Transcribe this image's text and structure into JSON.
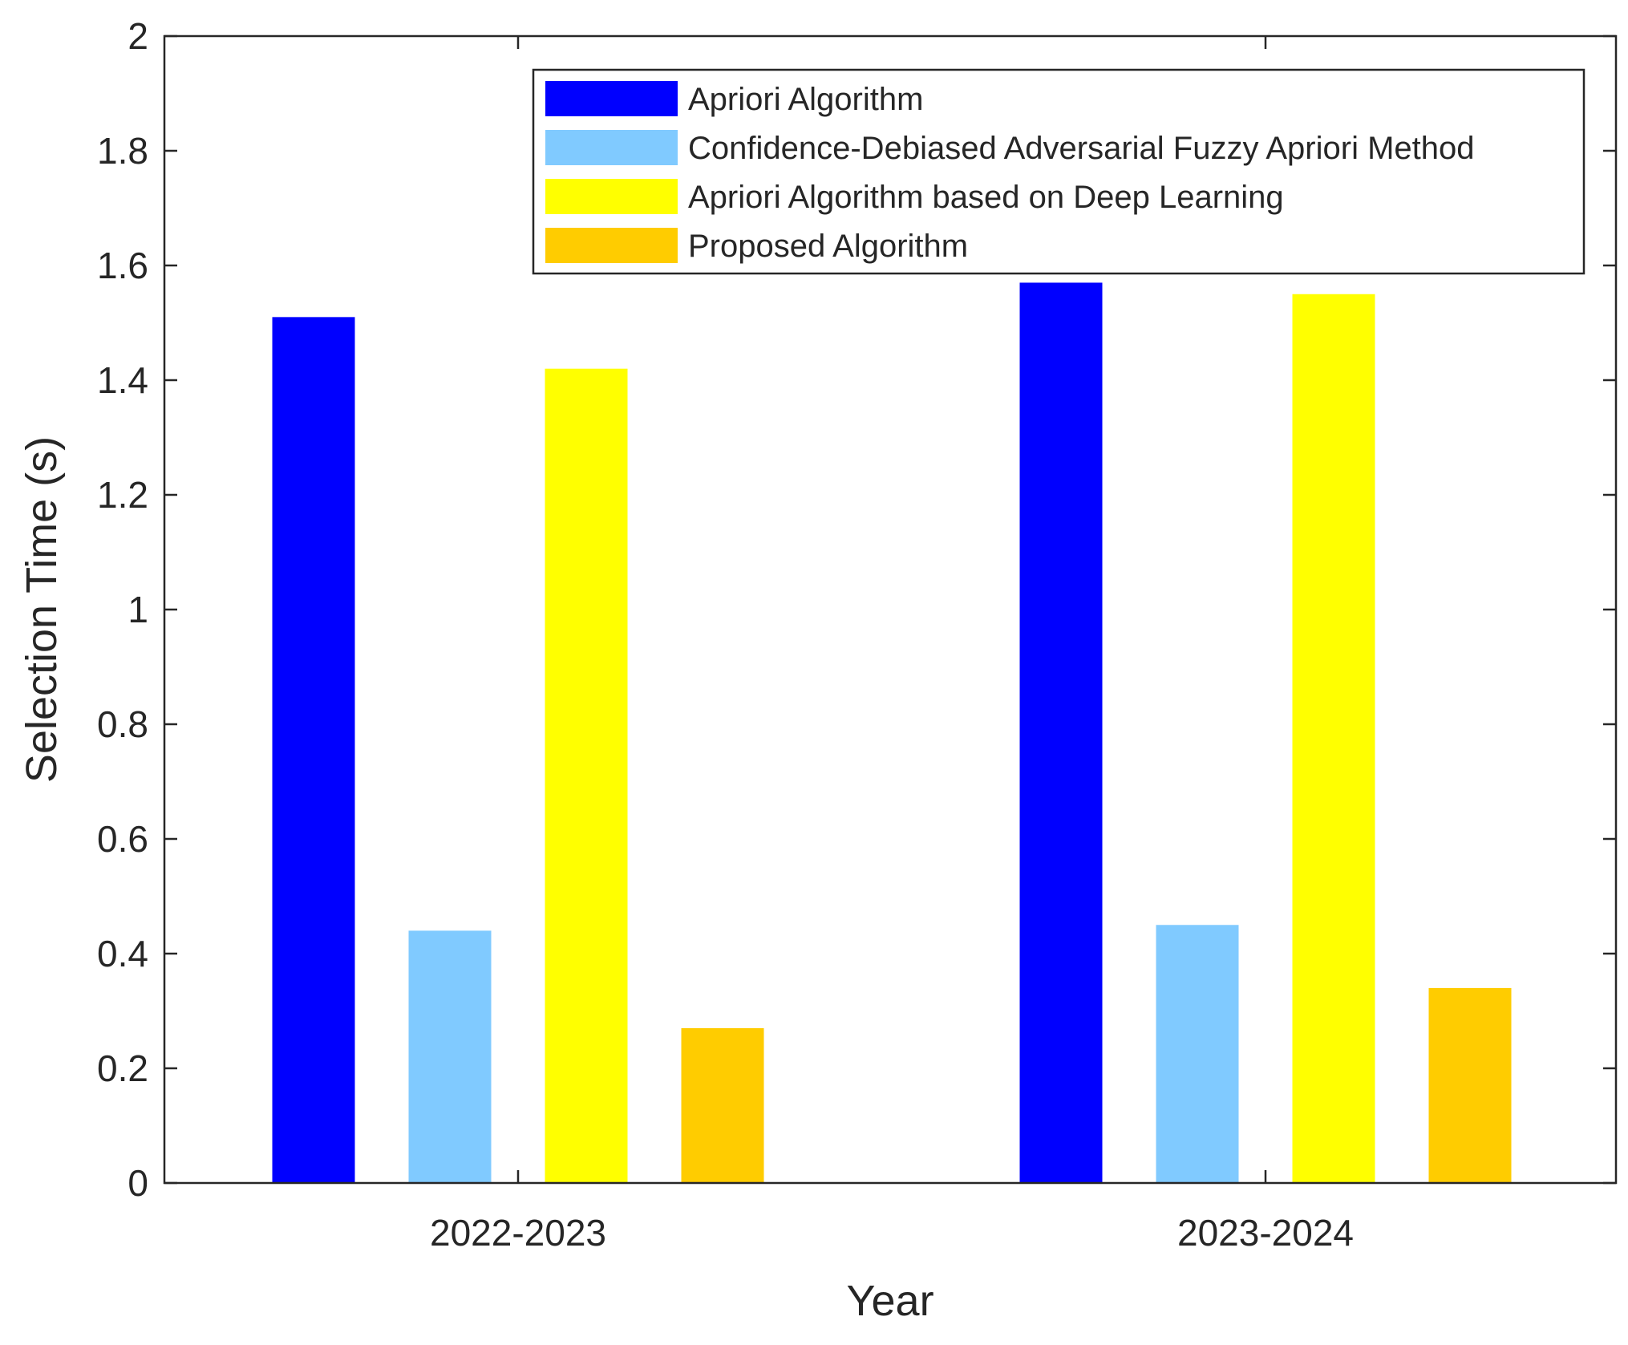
{
  "chart_data": {
    "type": "bar",
    "title": "",
    "xlabel": "Year",
    "ylabel": "Selection Time (s)",
    "categories": [
      "2022-2023",
      "2023-2024"
    ],
    "ylim": [
      0,
      2
    ],
    "yticks": [
      "0",
      "0.2",
      "0.4",
      "0.6",
      "0.8",
      "1",
      "1.2",
      "1.4",
      "1.6",
      "1.8",
      "2"
    ],
    "grid": false,
    "legend_position": "top-right",
    "series": [
      {
        "name": "Apriori Algorithm",
        "color": "#0000FF",
        "values": [
          1.51,
          1.57
        ]
      },
      {
        "name": "Confidence-Debiased Adversarial Fuzzy Apriori Method",
        "color": "#80CAFF",
        "values": [
          0.44,
          0.45
        ]
      },
      {
        "name": "Apriori Algorithm based on Deep Learning",
        "color": "#FFFF00",
        "values": [
          1.42,
          1.55
        ]
      },
      {
        "name": "Proposed Algorithm",
        "color": "#FFCC00",
        "values": [
          0.27,
          0.34
        ]
      }
    ]
  }
}
